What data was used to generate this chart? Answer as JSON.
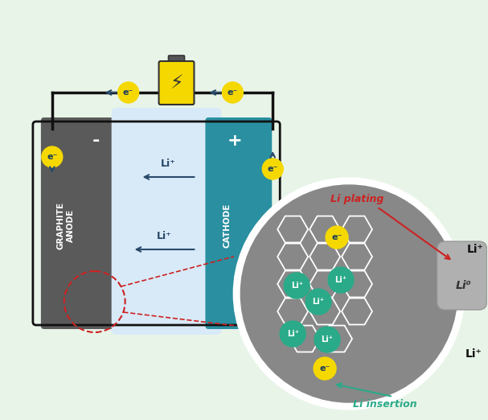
{
  "bg_color": "#e8f4e8",
  "anode_color": "#5a5a5a",
  "electrolyte_color": "#d8eaf8",
  "cathode_color": "#2a8fa0",
  "electron_yellow": "#f5d800",
  "electron_text": "#1a3a5c",
  "li_ion_green": "#2aaa88",
  "li_ion_text": "#ffffff",
  "arrow_dark": "#2a4a6a",
  "battery_yellow": "#f5d800",
  "battery_dark": "#333333",
  "circle_gray": "#888888",
  "circle_border": "#ffffff",
  "hex_color": "#aaaaaa",
  "plating_gray": "#b0b0b0",
  "red_color": "#cc2222",
  "teal_color": "#2aaa88",
  "black": "#111111",
  "white": "#ffffff",
  "wire_color": "#111111",
  "anode_label": "GRAPHITE\nANODE",
  "cathode_label": "CATHODE",
  "li_plating_label": "Li plating",
  "li_insertion_label": "Li insertion",
  "li0_label": "Li°",
  "li_superscript": "Li⁺",
  "e_minus": "e⁻"
}
